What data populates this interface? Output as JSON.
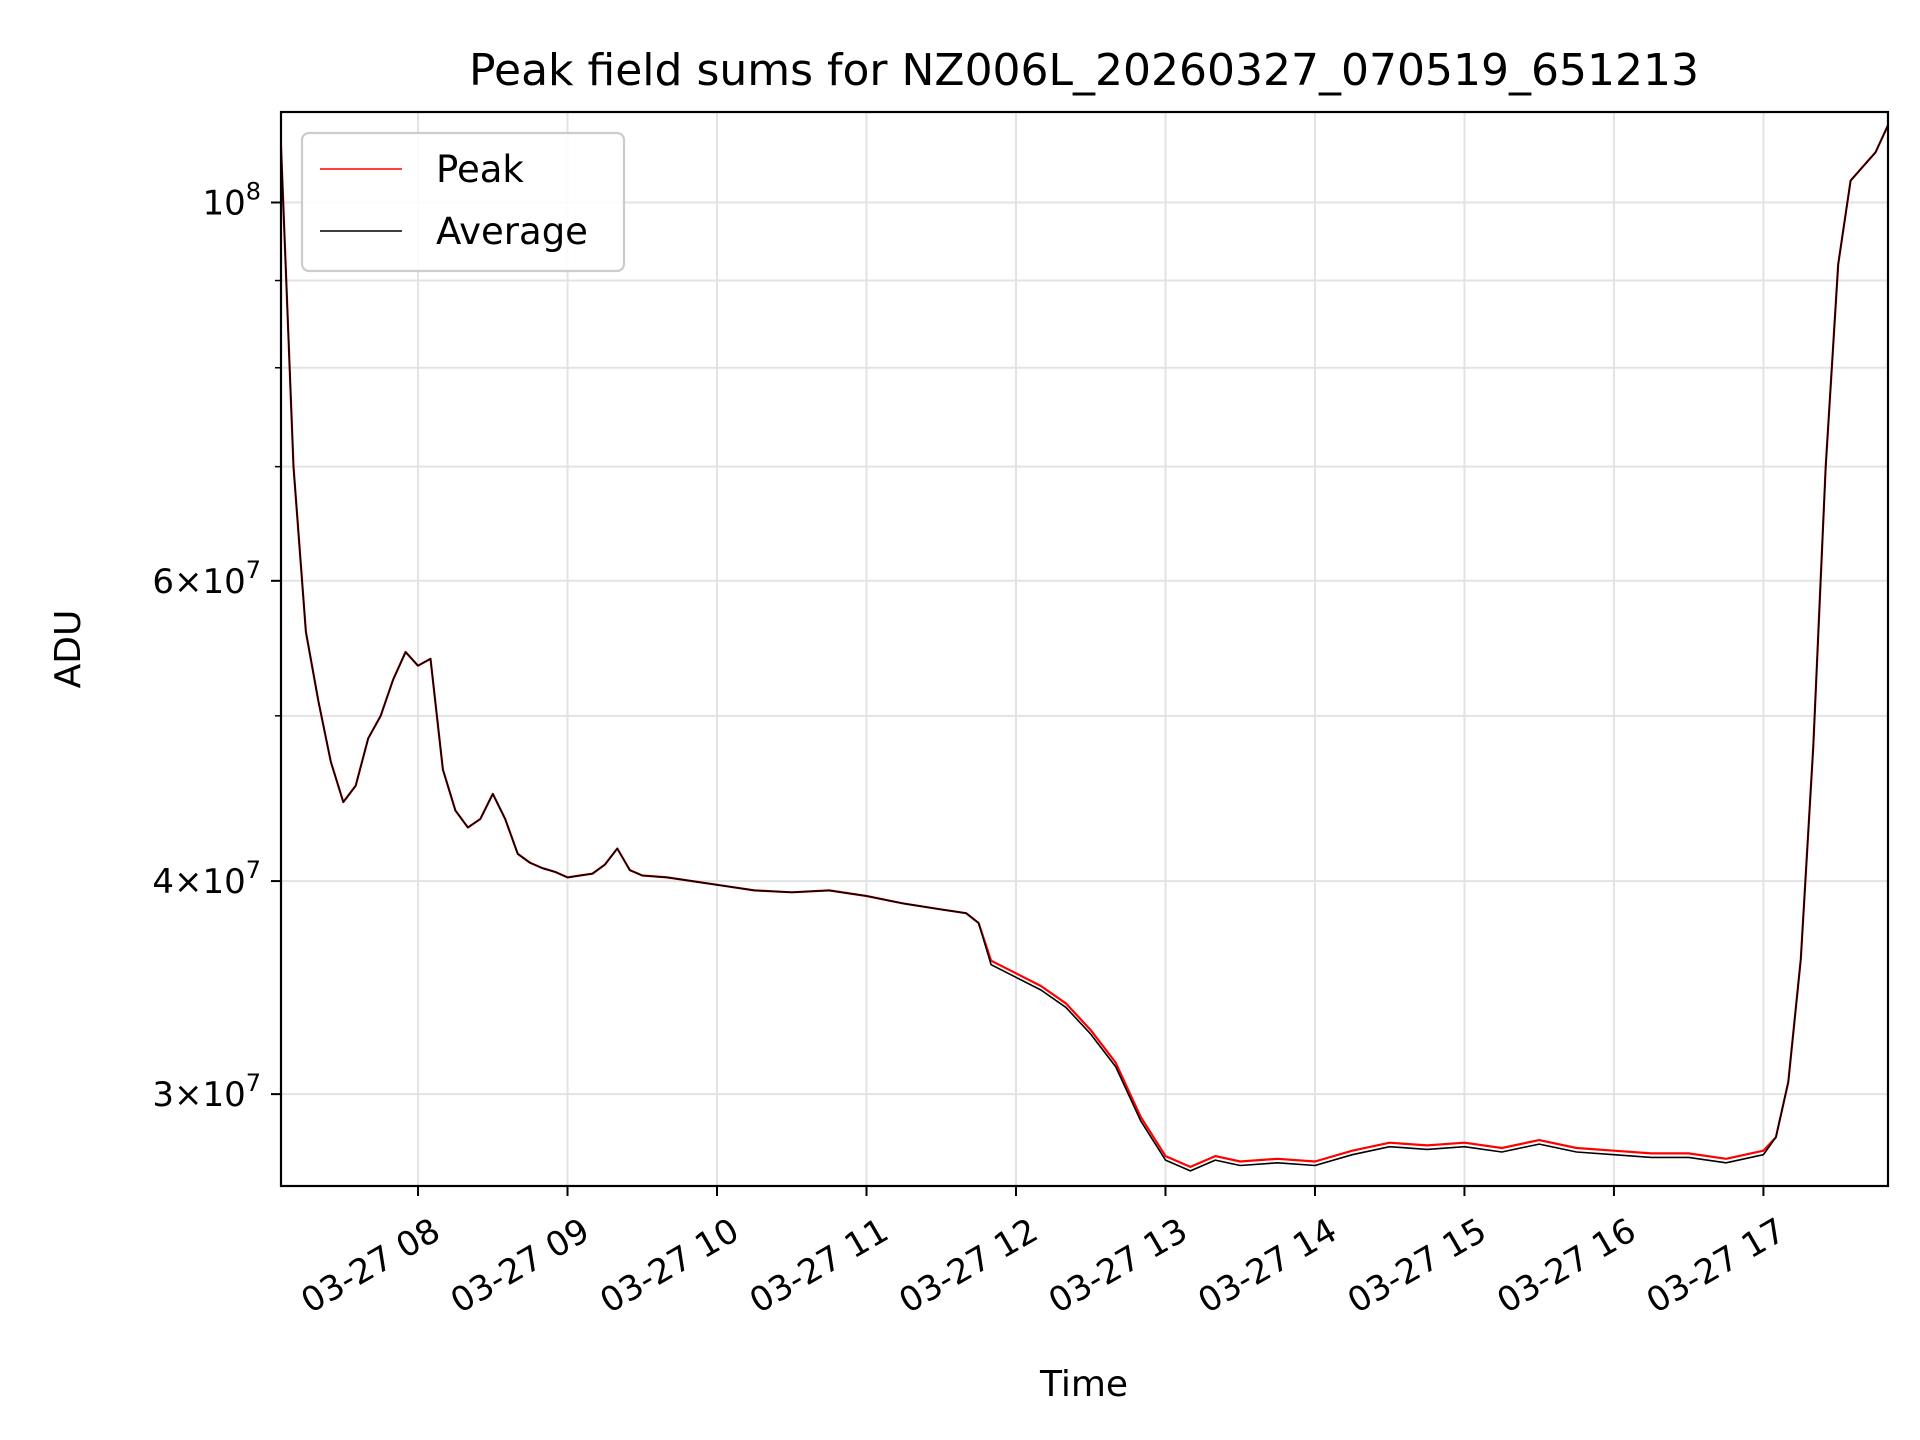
{
  "chart_data": {
    "type": "line",
    "title": "Peak field sums for NZ006L_20260327_070519_651213",
    "xlabel": "Time",
    "ylabel": "ADU",
    "y_scale": "log",
    "grid": true,
    "legend_position": "top-left",
    "xlim": [
      "2026-03-27 07:05",
      "2026-03-27 17:50"
    ],
    "ylim": [
      26500000,
      113000000
    ],
    "x_ticks": [
      "2026-03-27 08:00",
      "2026-03-27 09:00",
      "2026-03-27 10:00",
      "2026-03-27 11:00",
      "2026-03-27 12:00",
      "2026-03-27 13:00",
      "2026-03-27 14:00",
      "2026-03-27 15:00",
      "2026-03-27 16:00",
      "2026-03-27 17:00"
    ],
    "x_tick_labels": [
      "03-27 08",
      "03-27 09",
      "03-27 10",
      "03-27 11",
      "03-27 12",
      "03-27 13",
      "03-27 14",
      "03-27 15",
      "03-27 16",
      "03-27 17"
    ],
    "y_ticks": [
      {
        "value": 100000000,
        "base": "10",
        "exp": "8"
      },
      {
        "value": 60000000,
        "mant": "6",
        "base": "10",
        "exp": "7"
      },
      {
        "value": 40000000,
        "mant": "4",
        "base": "10",
        "exp": "7"
      },
      {
        "value": 30000000,
        "mant": "3",
        "base": "10",
        "exp": "7"
      }
    ],
    "y_minor_ticks": [
      50000000,
      70000000,
      80000000,
      90000000
    ],
    "colors": {
      "Peak": "#ff0000",
      "Average": "#000000"
    },
    "x": [
      "07:05",
      "07:10",
      "07:15",
      "07:20",
      "07:25",
      "07:30",
      "07:35",
      "07:40",
      "07:45",
      "07:50",
      "07:55",
      "08:00",
      "08:05",
      "08:10",
      "08:15",
      "08:20",
      "08:25",
      "08:30",
      "08:35",
      "08:40",
      "08:45",
      "08:50",
      "08:55",
      "09:00",
      "09:05",
      "09:10",
      "09:15",
      "09:20",
      "09:25",
      "09:30",
      "09:40",
      "09:50",
      "10:00",
      "10:15",
      "10:30",
      "10:45",
      "11:00",
      "11:15",
      "11:30",
      "11:40",
      "11:45",
      "11:50",
      "12:00",
      "12:10",
      "12:20",
      "12:30",
      "12:40",
      "12:50",
      "13:00",
      "13:10",
      "13:20",
      "13:30",
      "13:45",
      "14:00",
      "14:15",
      "14:30",
      "14:45",
      "15:00",
      "15:15",
      "15:30",
      "15:45",
      "16:00",
      "16:15",
      "16:30",
      "16:45",
      "17:00",
      "17:05",
      "17:10",
      "17:15",
      "17:20",
      "17:25",
      "17:30",
      "17:35",
      "17:40",
      "17:45",
      "17:50"
    ],
    "series": [
      {
        "name": "Peak",
        "values": [
          108000000,
          70000000,
          56000000,
          51000000,
          47000000,
          44500000,
          45500000,
          48500000,
          50000000,
          52500000,
          54500000,
          53500000,
          54000000,
          46500000,
          44000000,
          43000000,
          43500000,
          45000000,
          43500000,
          41500000,
          41000000,
          40700000,
          40500000,
          40200000,
          40300000,
          40400000,
          40900000,
          41800000,
          40600000,
          40300000,
          40200000,
          40000000,
          39800000,
          39500000,
          39400000,
          39500000,
          39200000,
          38800000,
          38500000,
          38300000,
          37800000,
          35800000,
          35200000,
          34600000,
          33800000,
          32600000,
          31200000,
          29000000,
          27500000,
          27100000,
          27500000,
          27300000,
          27400000,
          27300000,
          27700000,
          28000000,
          27900000,
          28000000,
          27800000,
          28100000,
          27800000,
          27700000,
          27600000,
          27600000,
          27400000,
          27700000,
          28300000,
          30500000,
          36000000,
          48000000,
          70000000,
          92000000,
          103000000,
          105000000,
          107000000,
          111000000
        ]
      },
      {
        "name": "Average",
        "values": [
          108000000,
          70000000,
          56000000,
          51000000,
          47000000,
          44500000,
          45500000,
          48500000,
          50000000,
          52500000,
          54500000,
          53500000,
          54000000,
          46500000,
          44000000,
          43000000,
          43500000,
          45000000,
          43500000,
          41500000,
          41000000,
          40700000,
          40500000,
          40200000,
          40300000,
          40400000,
          40900000,
          41800000,
          40600000,
          40300000,
          40200000,
          40000000,
          39800000,
          39500000,
          39400000,
          39500000,
          39200000,
          38800000,
          38500000,
          38300000,
          37800000,
          35800000,
          35200000,
          34600000,
          33800000,
          32600000,
          31200000,
          29000000,
          27500000,
          27100000,
          27500000,
          27300000,
          27400000,
          27300000,
          27700000,
          28000000,
          27900000,
          28000000,
          27800000,
          28100000,
          27800000,
          27700000,
          27600000,
          27600000,
          27400000,
          27700000,
          28300000,
          30500000,
          36000000,
          48000000,
          70000000,
          92000000,
          103000000,
          105000000,
          107000000,
          111000000
        ]
      }
    ]
  }
}
